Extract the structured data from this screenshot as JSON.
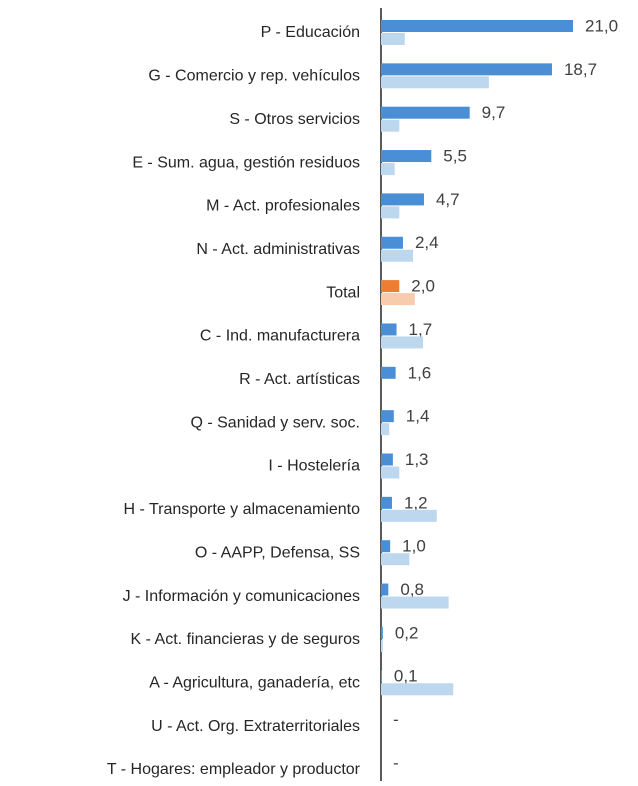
{
  "chart_data": {
    "type": "barh",
    "categories": [
      "P - Educación",
      "G - Comercio y rep. vehículos",
      "S - Otros servicios",
      "E - Sum. agua, gestión residuos",
      "M - Act. profesionales",
      "N - Act. administrativas",
      "Total",
      "C - Ind. manufacturera",
      "R - Act. artísticas",
      "Q - Sanidad y serv. soc.",
      "I - Hostelería",
      "H - Transporte y almacenamiento",
      "O - AAPP, Defensa, SS",
      "J - Información y comunicaciones",
      "K - Act. financieras y de seguros",
      "A - Agricultura, ganadería, etc",
      "U - Act. Org. Extraterritoriales",
      "T - Hogares: empleador y productor"
    ],
    "series": [
      {
        "color": "#4a8fd6",
        "colors": [
          "#4a8fd6",
          "#4a8fd6",
          "#4a8fd6",
          "#4a8fd6",
          "#4a8fd6",
          "#4a8fd6",
          "#ed7d31",
          "#4a8fd6",
          "#4a8fd6",
          "#4a8fd6",
          "#4a8fd6",
          "#4a8fd6",
          "#4a8fd6",
          "#4a8fd6",
          "#4a8fd6",
          "#4a8fd6",
          "#4a8fd6",
          "#4a8fd6"
        ],
        "values": [
          21.0,
          18.7,
          9.7,
          5.5,
          4.7,
          2.4,
          2.0,
          1.7,
          1.6,
          1.4,
          1.3,
          1.2,
          1.0,
          0.8,
          0.2,
          0.1,
          null,
          null
        ],
        "value_labels": [
          "21,0",
          "18,7",
          "9,7",
          "5,5",
          "4,7",
          "2,4",
          "2,0",
          "1,7",
          "1,6",
          "1,4",
          "1,3",
          "1,2",
          "1,0",
          "0,8",
          "0,2",
          "0,1",
          "-",
          "-"
        ]
      },
      {
        "color": "#bdd7ee",
        "colors": [
          "#bdd7ee",
          "#bdd7ee",
          "#bdd7ee",
          "#bdd7ee",
          "#bdd7ee",
          "#bdd7ee",
          "#f8cbad",
          "#bdd7ee",
          "#bdd7ee",
          "#bdd7ee",
          "#bdd7ee",
          "#bdd7ee",
          "#bdd7ee",
          "#bdd7ee",
          "#bdd7ee",
          "#bdd7ee",
          "#bdd7ee",
          "#bdd7ee"
        ],
        "values": [
          2.6,
          11.8,
          2.0,
          1.5,
          2.0,
          3.5,
          3.7,
          4.6,
          0,
          0.9,
          2.0,
          6.1,
          3.1,
          7.4,
          0.2,
          7.9,
          null,
          null
        ]
      }
    ],
    "xlim": [
      0,
      21
    ]
  }
}
